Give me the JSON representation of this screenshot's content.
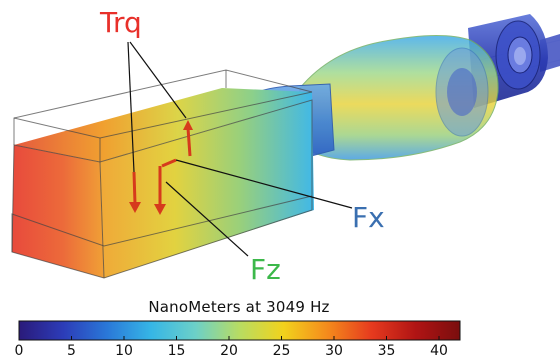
{
  "labels": {
    "trq": "Trq",
    "fx": "Fx",
    "fz": "Fz"
  },
  "colorbar": {
    "title": "NanoMeters at 3049 Hz",
    "ticks": [
      "0",
      "5",
      "10",
      "15",
      "20",
      "25",
      "30",
      "35",
      "40"
    ],
    "min": 0,
    "max": 42,
    "colormap": [
      "#2a1a7a",
      "#2c3cb8",
      "#2a78d8",
      "#36b6e6",
      "#6cd0c8",
      "#b8dc62",
      "#f2d21c",
      "#f48a1c",
      "#e63a1e",
      "#b01414",
      "#7a0e0e"
    ]
  },
  "colors": {
    "trq": "#e8302a",
    "fx": "#3a6fb0",
    "fz": "#3cb84a",
    "arrow": "#d63a1c"
  }
}
